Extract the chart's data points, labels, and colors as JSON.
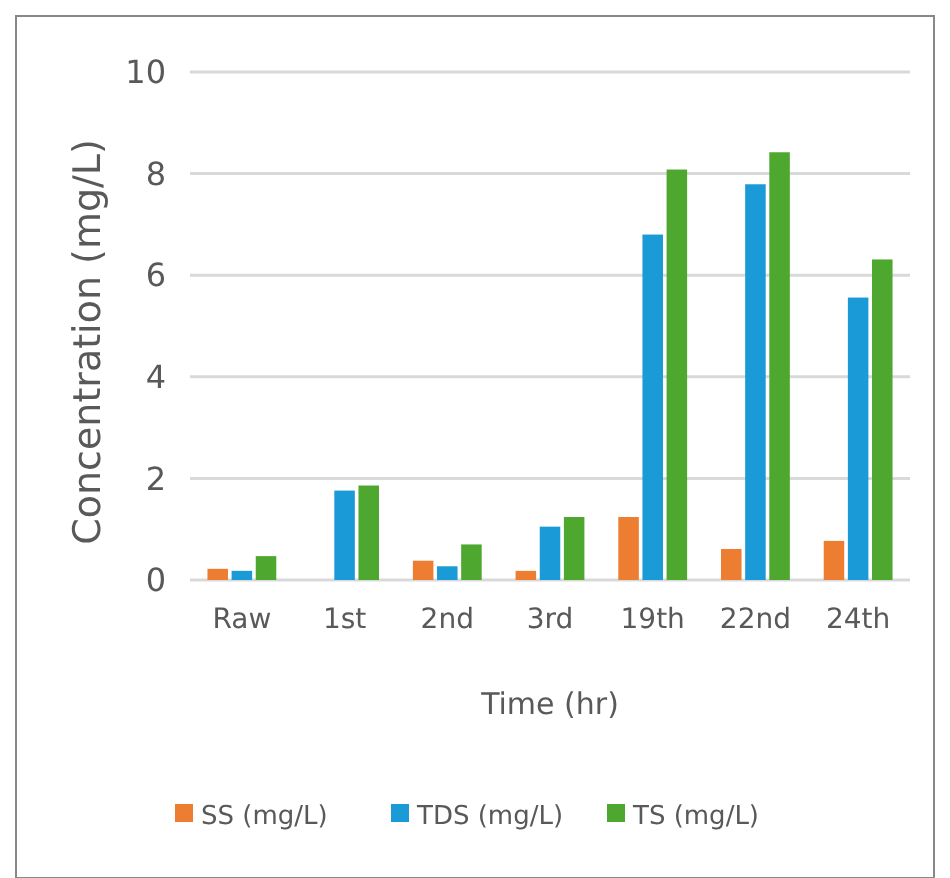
{
  "chart_data": {
    "type": "bar",
    "xlabel": "Time (hr)",
    "ylabel": "Concentration (mg/L)",
    "categories": [
      "Raw",
      "1st",
      "2nd",
      "3rd",
      "19th",
      "22nd",
      "24th"
    ],
    "series": [
      {
        "name": "SS (mg/L)",
        "color": "#ed7d31",
        "values": [
          0.22,
          0,
          0.38,
          0.18,
          1.24,
          0.61,
          0.77
        ]
      },
      {
        "name": "TDS (mg/L)",
        "color": "#1a9ad6",
        "values": [
          0.18,
          1.76,
          0.27,
          1.05,
          6.8,
          7.79,
          5.56
        ]
      },
      {
        "name": "TS (mg/L)",
        "color": "#4ea72e",
        "values": [
          0.47,
          1.86,
          0.7,
          1.24,
          8.08,
          8.42,
          6.31
        ]
      }
    ],
    "ylim": [
      0,
      10
    ],
    "yticks": [
      0,
      2,
      4,
      6,
      8,
      10
    ],
    "grid": "y",
    "legend": "bottom"
  }
}
